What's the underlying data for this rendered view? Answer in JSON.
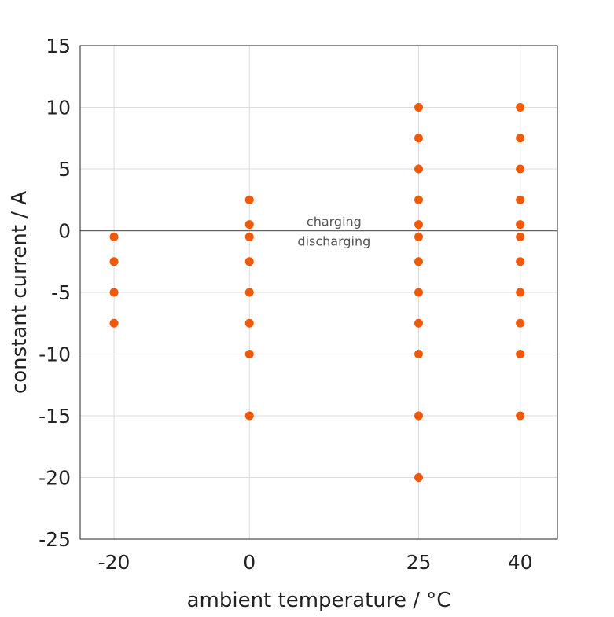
{
  "chart_data": {
    "type": "scatter",
    "title": "",
    "xlabel": "ambient temperature / °C",
    "ylabel": "constant current / A",
    "xlim": [
      -25,
      45.5
    ],
    "ylim": [
      -25,
      15
    ],
    "xticks": [
      -20,
      0,
      25,
      40
    ],
    "xtick_labels": [
      "-20",
      "0",
      "25",
      "40"
    ],
    "yticks": [
      15,
      10,
      5,
      0,
      -5,
      -10,
      -15,
      -20,
      -25
    ],
    "ytick_labels": [
      "15",
      "10",
      "5",
      "0",
      "-5",
      "-10",
      "-15",
      "-20",
      "-25"
    ],
    "grid": true,
    "marker_color": "#EE5A0A",
    "reference_line": {
      "y": 0,
      "color": "#666666"
    },
    "annotations": {
      "above": "charging",
      "below": "discharging"
    },
    "points": [
      {
        "x": -20,
        "y": -0.5
      },
      {
        "x": -20,
        "y": -2.5
      },
      {
        "x": -20,
        "y": -5
      },
      {
        "x": -20,
        "y": -7.5
      },
      {
        "x": 0,
        "y": 2.5
      },
      {
        "x": 0,
        "y": 0.5
      },
      {
        "x": 0,
        "y": -0.5
      },
      {
        "x": 0,
        "y": -2.5
      },
      {
        "x": 0,
        "y": -5
      },
      {
        "x": 0,
        "y": -7.5
      },
      {
        "x": 0,
        "y": -10
      },
      {
        "x": 0,
        "y": -15
      },
      {
        "x": 25,
        "y": 10
      },
      {
        "x": 25,
        "y": 7.5
      },
      {
        "x": 25,
        "y": 5
      },
      {
        "x": 25,
        "y": 2.5
      },
      {
        "x": 25,
        "y": 0.5
      },
      {
        "x": 25,
        "y": -0.5
      },
      {
        "x": 25,
        "y": -2.5
      },
      {
        "x": 25,
        "y": -5
      },
      {
        "x": 25,
        "y": -7.5
      },
      {
        "x": 25,
        "y": -10
      },
      {
        "x": 25,
        "y": -15
      },
      {
        "x": 25,
        "y": -20
      },
      {
        "x": 40,
        "y": 10
      },
      {
        "x": 40,
        "y": 7.5
      },
      {
        "x": 40,
        "y": 5
      },
      {
        "x": 40,
        "y": 2.5
      },
      {
        "x": 40,
        "y": 0.5
      },
      {
        "x": 40,
        "y": -0.5
      },
      {
        "x": 40,
        "y": -2.5
      },
      {
        "x": 40,
        "y": -5
      },
      {
        "x": 40,
        "y": -7.5
      },
      {
        "x": 40,
        "y": -10
      },
      {
        "x": 40,
        "y": -15
      }
    ]
  }
}
